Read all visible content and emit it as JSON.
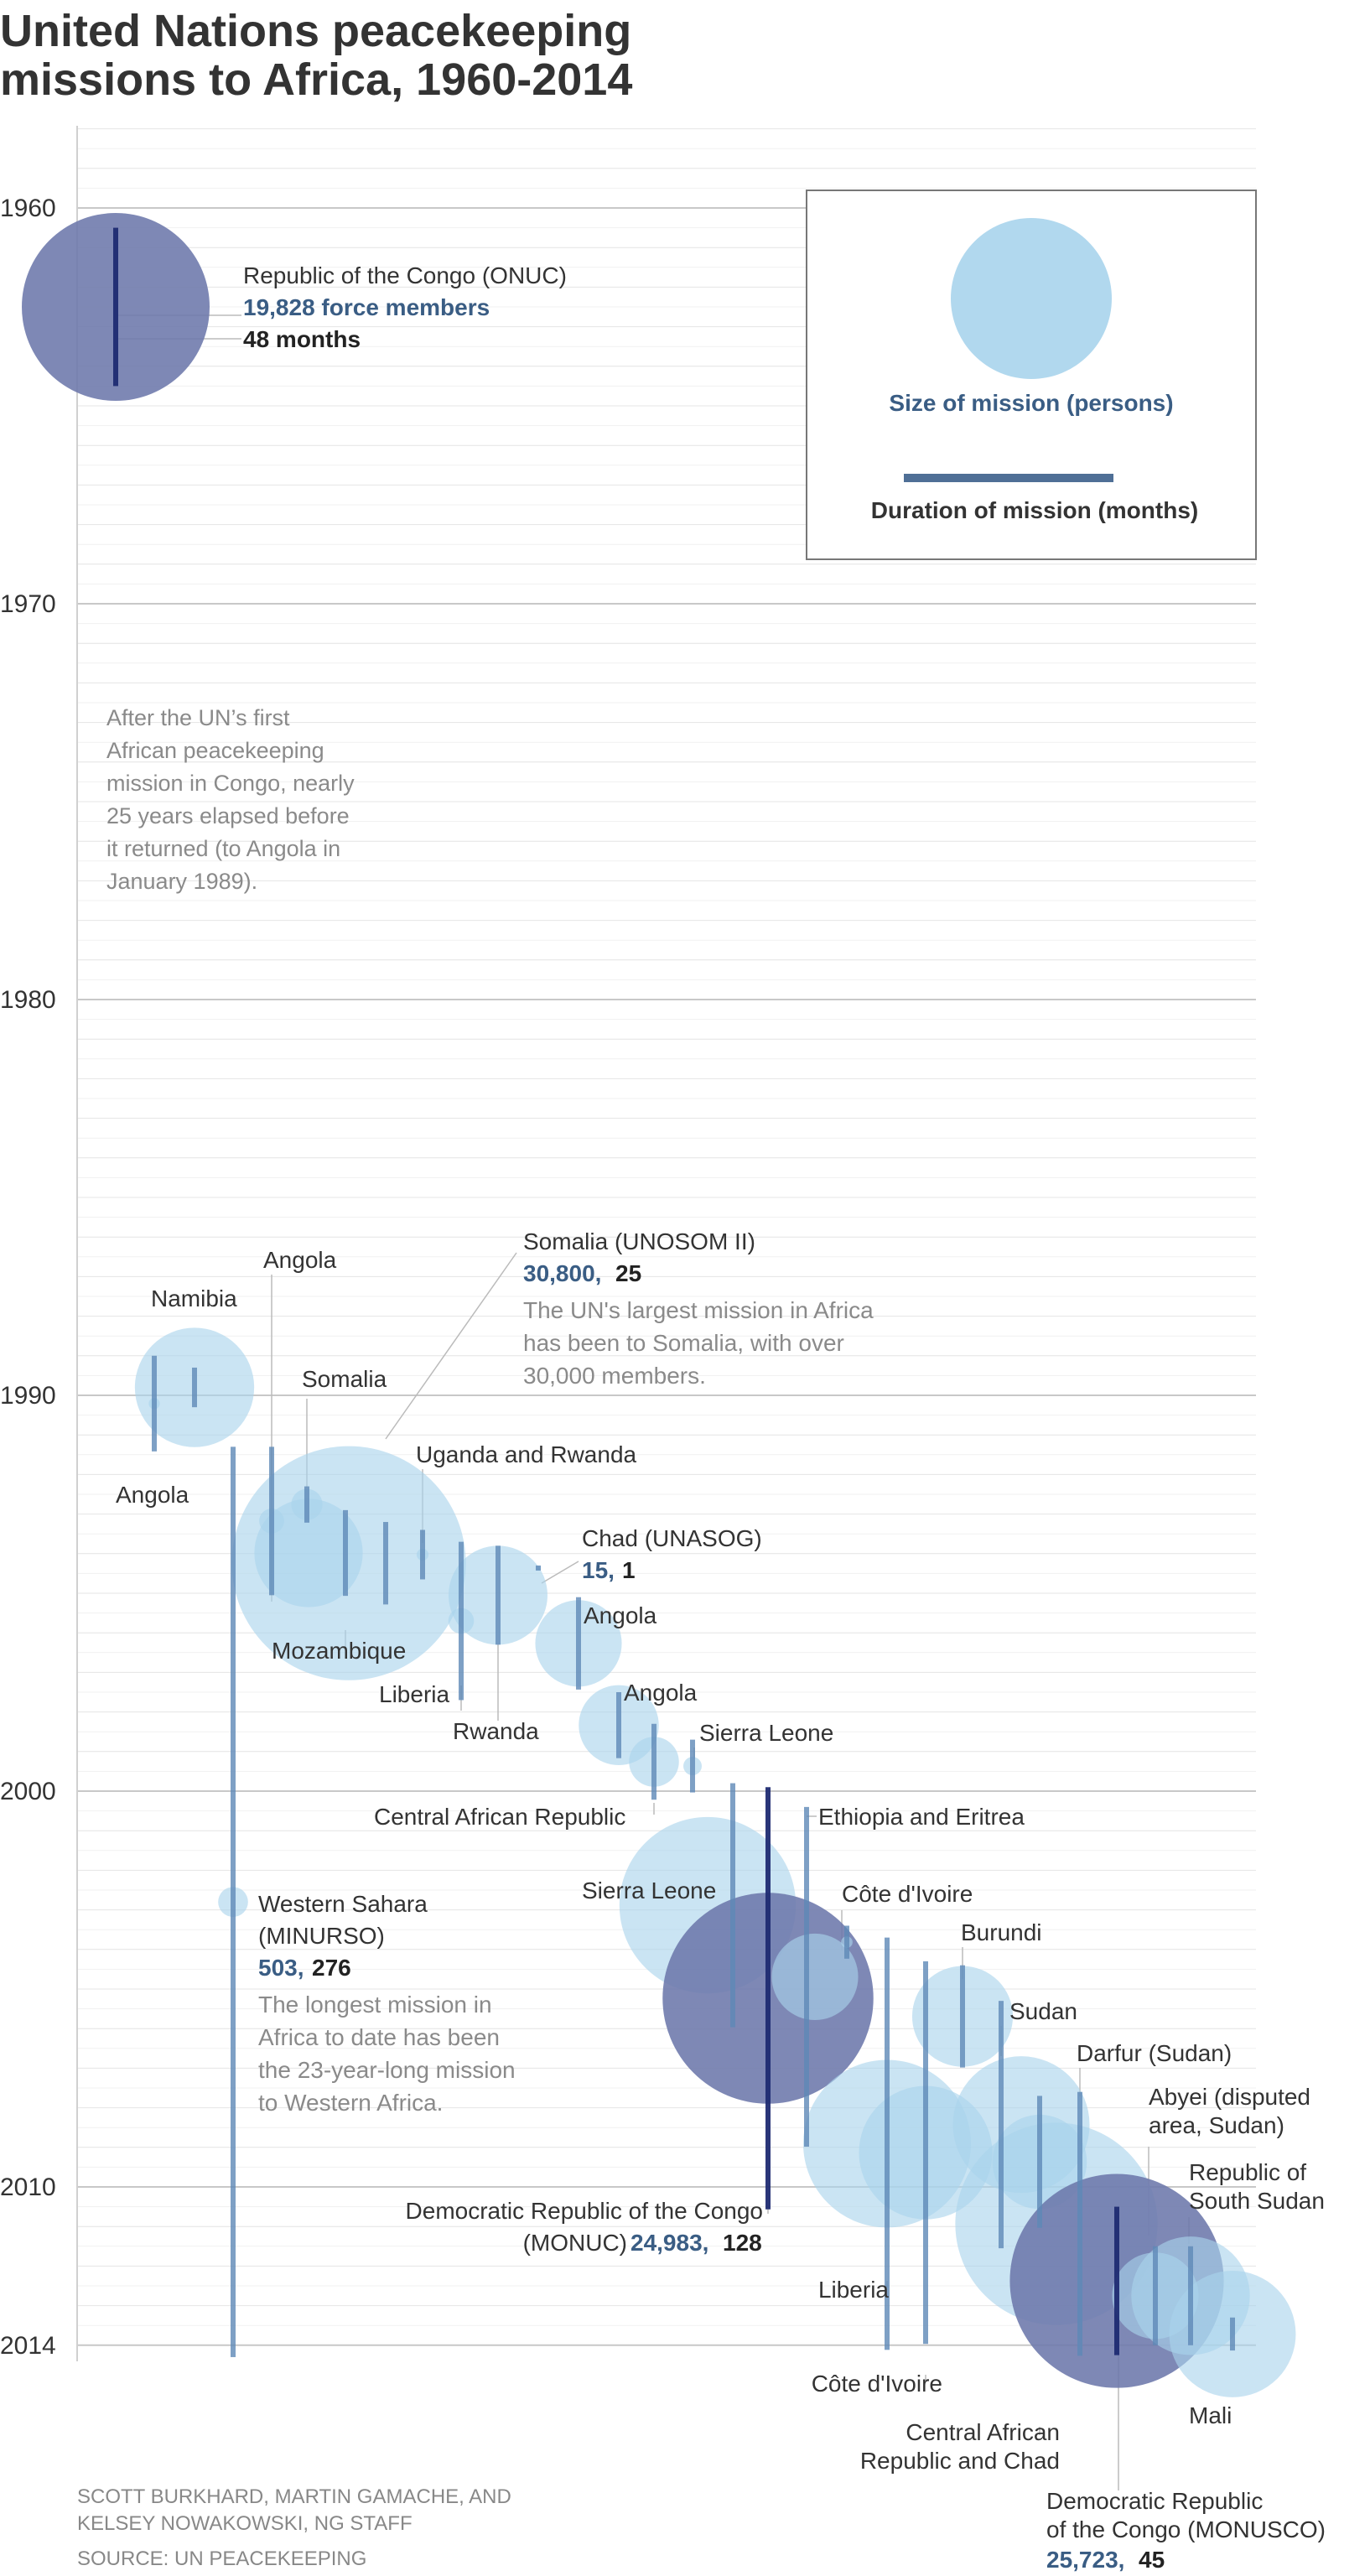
{
  "header": {
    "title_line1": "United Nations peacekeeping",
    "title_line2": "missions to Africa, 1960-2014"
  },
  "legend": {
    "size_label": "Size of mission (persons)",
    "duration_label": "Duration of mission (months)"
  },
  "colors": {
    "light_blue": "#a9d4ec",
    "dark_purple": "#6c77ab",
    "bar_mid": "#5e88b6",
    "bar_dark": "#1f2b72",
    "value_blue": "#3a5d84",
    "annotation_gray": "#8a8a8a"
  },
  "annotations": {
    "early_gap": [
      "After the UN’s first",
      "African peacekeeping",
      "mission in Congo, nearly",
      "25 years elapsed before",
      "it returned (to Angola in",
      "January 1989)."
    ],
    "somalia_note": [
      "The UN's largest mission in Africa",
      "has been to Somalia, with over",
      "30,000 members."
    ],
    "western_sahara_note": [
      "The longest mission in",
      "Africa to date has been",
      "the 23-year-long mission",
      "to Western Africa."
    ]
  },
  "credits": {
    "line1": "SCOTT BURKHARD, MARTIN GAMACHE, AND",
    "line2": "KELSEY NOWAKOWSKI, NG STAFF",
    "source": "SOURCE: UN PEACEKEEPING"
  },
  "chart_data": {
    "type": "scatter",
    "y_axis": {
      "ticks": [
        "1960",
        "1970",
        "1980",
        "1990",
        "2000",
        "2010",
        "2014"
      ],
      "range": [
        1958,
        2014
      ],
      "grid": true
    },
    "encoding": {
      "circle_area": "force members",
      "bar_length": "duration in months"
    },
    "missions": [
      {
        "name": "Republic of the Congo (ONUC)",
        "start": 1960.5,
        "size": 19828,
        "months": 48,
        "highlight": true,
        "col": 0
      },
      {
        "name": "Angola",
        "start": 1989.0,
        "size": 70,
        "months": 29,
        "col": 1
      },
      {
        "name": "Namibia",
        "start": 1989.3,
        "size": 8000,
        "months": 12,
        "col": 2
      },
      {
        "name": "Western Sahara (MINURSO)",
        "start": 1991.3,
        "size": 503,
        "months": 276,
        "col": 3
      },
      {
        "name": "Angola",
        "start": 1991.3,
        "size": 350,
        "months": 45,
        "col": 4
      },
      {
        "name": "Somalia",
        "start": 1992.3,
        "size": 550,
        "months": 11,
        "col": 5
      },
      {
        "name": "Mozambique",
        "start": 1992.9,
        "size": 6600,
        "months": 26,
        "col": 6
      },
      {
        "name": "Somalia (UNOSOM II)",
        "start": 1993.2,
        "size": 30800,
        "months": 25,
        "col": 7
      },
      {
        "name": "Uganda and Rwanda",
        "start": 1993.4,
        "size": 80,
        "months": 15,
        "col": 8
      },
      {
        "name": "Liberia",
        "start": 1993.7,
        "size": 370,
        "months": 48,
        "col": 9
      },
      {
        "name": "Rwanda",
        "start": 1993.8,
        "size": 5500,
        "months": 30,
        "col": 10
      },
      {
        "name": "Chad (UNASOG)",
        "start": 1994.3,
        "size": 15,
        "months": 1,
        "col": 11
      },
      {
        "name": "Angola",
        "start": 1995.1,
        "size": 4200,
        "months": 28,
        "col": 12
      },
      {
        "name": "Angola",
        "start": 1997.5,
        "size": 3600,
        "months": 20,
        "col": 13
      },
      {
        "name": "Central African Republic",
        "start": 1998.3,
        "size": 1400,
        "months": 23,
        "col": 14
      },
      {
        "name": "Sierra Leone",
        "start": 1998.7,
        "size": 190,
        "months": 16,
        "col": 15
      },
      {
        "name": "Sierra Leone",
        "start": 1999.8,
        "size": 17500,
        "months": 74,
        "col": 16
      },
      {
        "name": "Democratic Republic of the Congo (MONUC)",
        "start": 1999.9,
        "size": 24983,
        "months": 128,
        "highlight": true,
        "col": 17
      },
      {
        "name": "Ethiopia and Eritrea",
        "start": 2000.4,
        "size": 4200,
        "months": 103,
        "col": 18
      },
      {
        "name": "Côte d'Ivoire",
        "start": 2003.4,
        "size": 75,
        "months": 10,
        "col": 19
      },
      {
        "name": "Liberia",
        "start": 2003.7,
        "size": 15800,
        "months": 125,
        "col": 20
      },
      {
        "name": "Côte d'Ivoire",
        "start": 2004.3,
        "size": 10000,
        "months": 116,
        "col": 21
      },
      {
        "name": "Burundi",
        "start": 2004.4,
        "size": 5700,
        "months": 31,
        "col": 22
      },
      {
        "name": "Sudan",
        "start": 2005.3,
        "size": 10500,
        "months": 75,
        "col": 23
      },
      {
        "name": "Central African Republic and Chad",
        "start": 2007.7,
        "size": 5000,
        "months": 40,
        "col": 24
      },
      {
        "name": "Darfur (Sudan)",
        "start": 2007.6,
        "size": 23000,
        "months": 80,
        "col": 25
      },
      {
        "name": "Democratic Republic of the Congo (MONUSCO)",
        "start": 2010.5,
        "size": 25723,
        "months": 45,
        "highlight": true,
        "col": 26
      },
      {
        "name": "Abyei (disputed area, Sudan)",
        "start": 2011.5,
        "size": 4200,
        "months": 30,
        "col": 27
      },
      {
        "name": "Republic of South Sudan",
        "start": 2011.5,
        "size": 7900,
        "months": 30,
        "col": 28
      },
      {
        "name": "Mali",
        "start": 2013.3,
        "size": 9000,
        "months": 10,
        "col": 29
      }
    ]
  },
  "labels": {
    "onuc": {
      "name": "Republic of the Congo (ONUC)",
      "size": "19,828 force members",
      "months": "48 months"
    },
    "namibia": "Namibia",
    "angola_top": "Angola",
    "angola_left": "Angola",
    "somalia": "Somalia",
    "somalia2": {
      "name": "Somalia (UNOSOM II)",
      "size": "30,800,",
      "months": "25"
    },
    "uganda": "Uganda and Rwanda",
    "chad": {
      "name": "Chad (UNASOG)",
      "size": "15,",
      "months": "1"
    },
    "mozambique": "Mozambique",
    "liberia_90s": "Liberia",
    "rwanda": "Rwanda",
    "angola_95": "Angola",
    "angola_97": "Angola",
    "sierra_small": "Sierra Leone",
    "car": "Central African Republic",
    "ethiopia": "Ethiopia and Eritrea",
    "sierra_big": "Sierra Leone",
    "cote_small": "Côte d'Ivoire",
    "burundi": "Burundi",
    "sudan": "Sudan",
    "darfur": "Darfur (Sudan)",
    "abyei_1": "Abyei (disputed",
    "abyei_2": "area, Sudan)",
    "rss_1": "Republic of",
    "rss_2": "South Sudan",
    "ws": {
      "name1": "Western Sahara",
      "name2": "(MINURSO)",
      "size": "503,",
      "months": "276"
    },
    "monuc": {
      "name1": "Democratic Republic of the Congo",
      "name2": "(MONUC)",
      "size": "24,983,",
      "months": "128"
    },
    "liberia_03": "Liberia",
    "cote_big": "Côte d'Ivoire",
    "car_chad_1": "Central African",
    "car_chad_2": "Republic and Chad",
    "mali": "Mali",
    "monusco": {
      "name1": "Democratic Republic",
      "name2": "of the Congo (MONUSCO)",
      "size": "25,723,",
      "months": "45"
    }
  }
}
